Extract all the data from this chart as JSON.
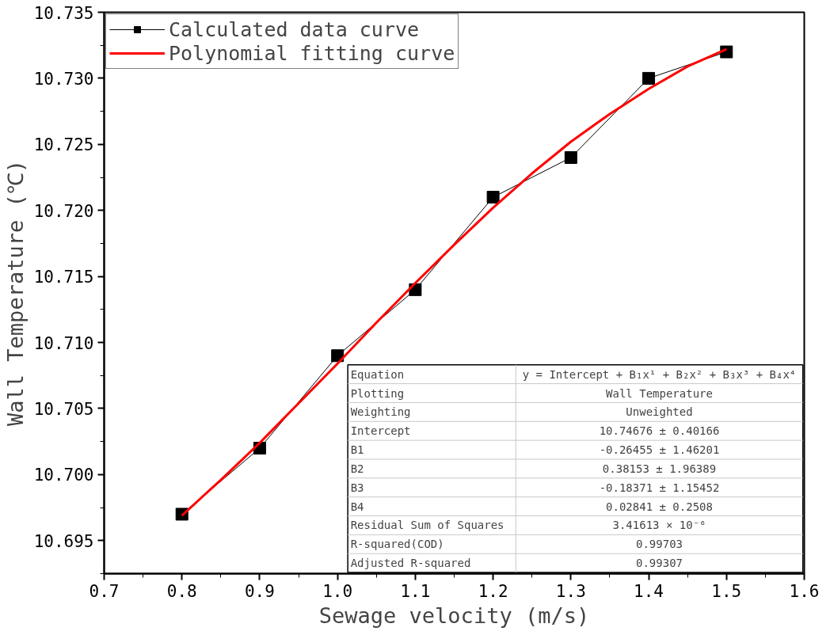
{
  "chart_data": {
    "type": "line",
    "xlabel": "Sewage velocity (m/s)",
    "ylabel": "Wall Temperature (℃)",
    "x": [
      0.8,
      0.9,
      1.0,
      1.1,
      1.2,
      1.3,
      1.4,
      1.5
    ],
    "series": [
      {
        "name": "Calculated data curve",
        "color": "#000000",
        "marker": "square",
        "values": [
          10.697,
          10.702,
          10.709,
          10.714,
          10.721,
          10.724,
          10.73,
          10.732
        ]
      },
      {
        "name": "Polynomial fitting curve",
        "color": "#ff0000",
        "marker": "none",
        "x": [
          0.8,
          0.85,
          0.9,
          0.95,
          1.0,
          1.05,
          1.1,
          1.15,
          1.2,
          1.25,
          1.3,
          1.35,
          1.4,
          1.45,
          1.5
        ],
        "values": [
          10.6969,
          10.6996,
          10.7024,
          10.7054,
          10.7084,
          10.7115,
          10.7145,
          10.7174,
          10.7202,
          10.7228,
          10.7252,
          10.7273,
          10.7292,
          10.7309,
          10.7322
        ]
      }
    ],
    "xlim": [
      0.7,
      1.6
    ],
    "ylim": [
      10.6925,
      10.735
    ],
    "xticks": [
      0.7,
      0.8,
      0.9,
      {
        "value": 1,
        "label": "1.0"
      },
      1.1,
      1.2,
      1.3,
      1.4,
      1.5,
      1.6
    ],
    "yticks": [
      10.695,
      {
        "value": 10.7,
        "label": "10.700"
      },
      10.705,
      {
        "value": 10.71,
        "label": "10.710"
      },
      10.715,
      {
        "value": 10.72,
        "label": "10.720"
      },
      10.725,
      {
        "value": 10.73,
        "label": "10.730"
      },
      10.735
    ],
    "grid": false,
    "legend": "top left",
    "annotations": [
      "Equation",
      "y = Intercept + B₁x¹ + B₂x² + B₃x³ + B₄x⁴",
      "Plotting",
      "Wall Temperature",
      "Weighting",
      "Unweighted",
      "Intercept",
      "10.74676 ± 0.40166",
      "B1",
      "-0.26455 ± 1.46201",
      "B2",
      "0.38153 ± 1.96389",
      "B3",
      "-0.18371 ± 1.15452",
      "B4",
      "0.02841 ± 0.2508",
      "Residual Sum of Squares",
      "3.41613 × 10⁻⁶",
      "R-squared(COD)",
      "0.99703",
      "Adjusted R-squared",
      "0.99307"
    ]
  }
}
